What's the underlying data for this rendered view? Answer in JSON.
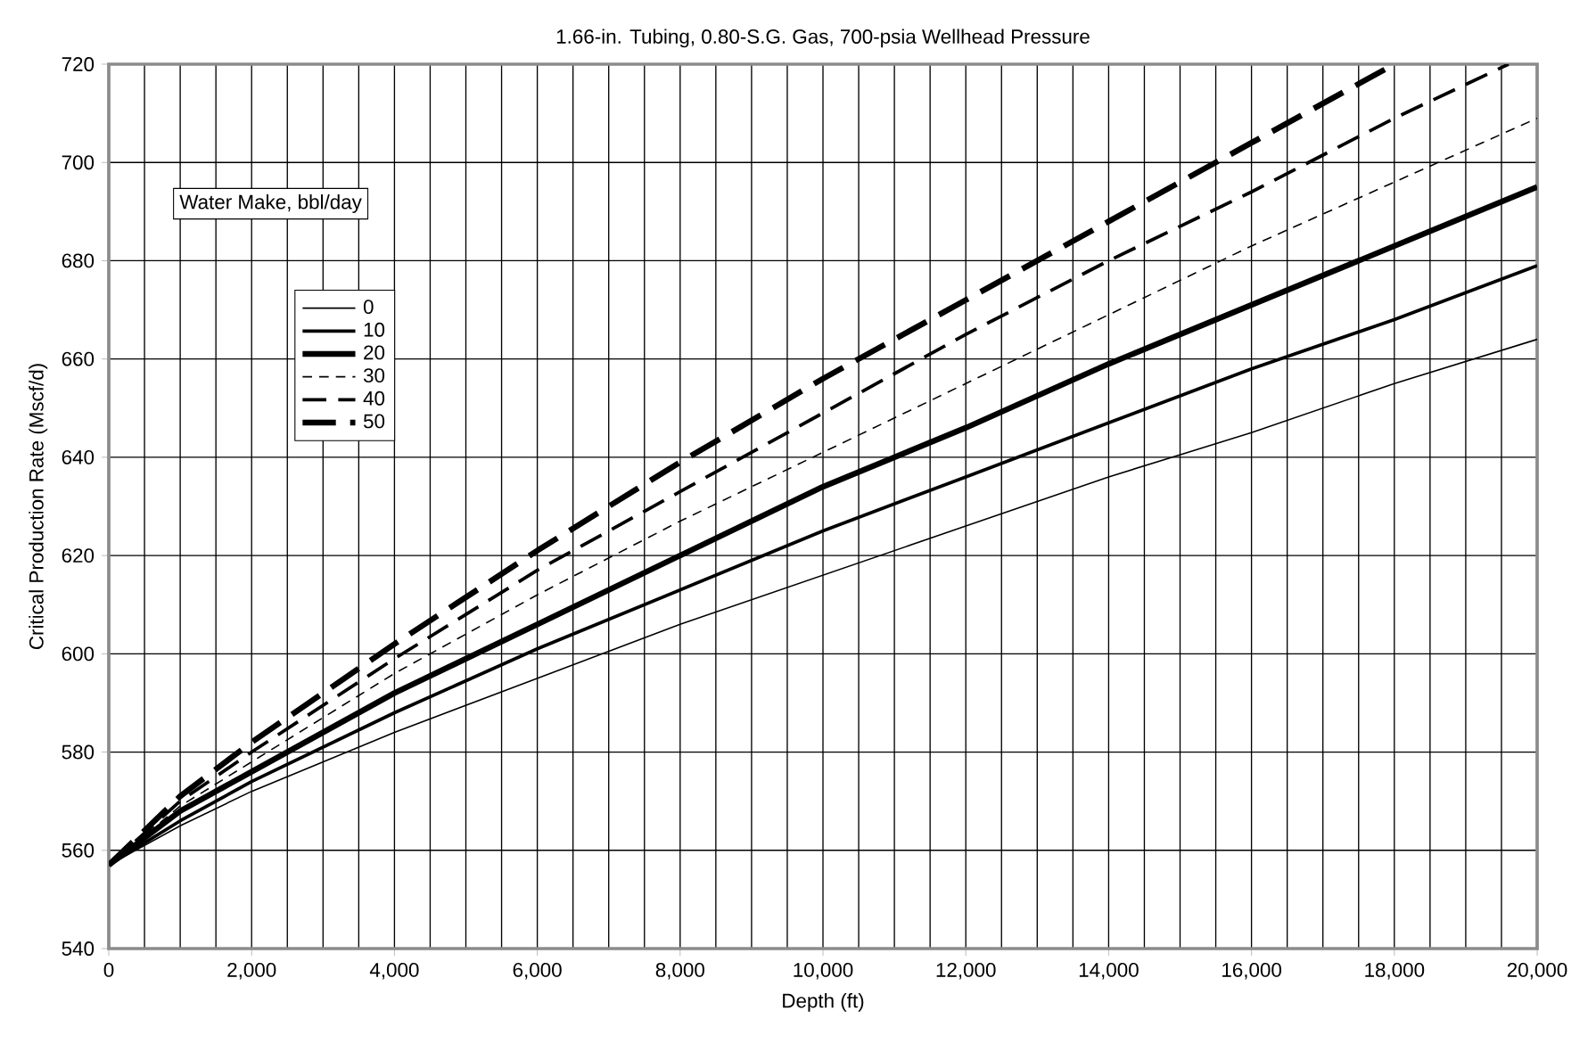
{
  "chart_data": {
    "type": "line",
    "title": "1.66-in. Tubing, 0.80-S.G. Gas, 700-psia Wellhead Pressure",
    "xlabel": "Depth (ft)",
    "ylabel": "Critical Production Rate (Mscf/d)",
    "legend_title": "Water Make, bbl/day",
    "xlim": [
      0,
      20000
    ],
    "ylim": [
      540,
      720
    ],
    "xticks": [
      {
        "value": 0,
        "label": "0"
      },
      {
        "value": 2000,
        "label": "2,000"
      },
      {
        "value": 4000,
        "label": "4,000"
      },
      {
        "value": 6000,
        "label": "6,000"
      },
      {
        "value": 8000,
        "label": "8,000"
      },
      {
        "value": 10000,
        "label": "10,000"
      },
      {
        "value": 12000,
        "label": "12,000"
      },
      {
        "value": 14000,
        "label": "14,000"
      },
      {
        "value": 16000,
        "label": "16,000"
      },
      {
        "value": 18000,
        "label": "18,000"
      },
      {
        "value": 20000,
        "label": "20,000"
      }
    ],
    "yticks": [
      540,
      560,
      580,
      600,
      620,
      640,
      660,
      680,
      700,
      720
    ],
    "grid": true,
    "legend": "top left",
    "marker": "none",
    "series": [
      {
        "name": "0",
        "color": "#000000",
        "line_style": "solid",
        "x": [
          0,
          1000,
          2000,
          4000,
          6000,
          8000,
          10000,
          12000,
          14000,
          16000,
          18000,
          20000
        ],
        "values": [
          557,
          565,
          572,
          584,
          595,
          606,
          616,
          626,
          636,
          645,
          655,
          664
        ]
      },
      {
        "name": "10",
        "color": "#000000",
        "line_style": "solid",
        "x": [
          0,
          1000,
          2000,
          4000,
          6000,
          8000,
          10000,
          12000,
          14000,
          16000,
          18000,
          20000
        ],
        "values": [
          557,
          566,
          574,
          588,
          601,
          613,
          625,
          636,
          647,
          658,
          668,
          679
        ]
      },
      {
        "name": "20",
        "color": "#000000",
        "line_style": "solid",
        "x": [
          0,
          1000,
          2000,
          4000,
          6000,
          8000,
          10000,
          12000,
          14000,
          16000,
          18000,
          20000
        ],
        "values": [
          557,
          568,
          576,
          592,
          606,
          620,
          634,
          646,
          659,
          671,
          683,
          695
        ]
      },
      {
        "name": "30",
        "color": "#000000",
        "line_style": "dashed",
        "x": [
          0,
          1000,
          2000,
          4000,
          6000,
          8000,
          10000,
          12000,
          14000,
          16000,
          18000,
          20000
        ],
        "values": [
          557,
          569,
          578,
          596,
          612,
          627,
          641,
          655,
          669,
          683,
          696,
          709
        ]
      },
      {
        "name": "40",
        "color": "#000000",
        "line_style": "dashed",
        "x": [
          0,
          1000,
          2000,
          4000,
          6000,
          8000,
          10000,
          12000,
          14000,
          16000,
          18000,
          19600
        ],
        "values": [
          557,
          570,
          580,
          599,
          617,
          633,
          649,
          665,
          680,
          694,
          709,
          720
        ]
      },
      {
        "name": "50",
        "color": "#000000",
        "line_style": "dashed",
        "x": [
          0,
          1000,
          2000,
          4000,
          6000,
          8000,
          10000,
          12000,
          14000,
          16000,
          18000
        ],
        "values": [
          557,
          571,
          582,
          602,
          621,
          639,
          656,
          672,
          688,
          704,
          720
        ]
      }
    ]
  }
}
